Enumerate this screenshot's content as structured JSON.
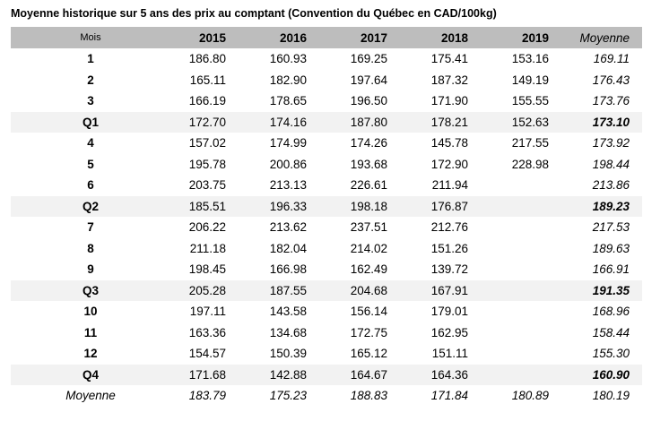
{
  "title": "Moyenne historique sur 5 ans des prix au comptant (Convention du Québec en CAD/100kg)",
  "table": {
    "columns": [
      "Mois",
      "2015",
      "2016",
      "2017",
      "2018",
      "2019",
      "Moyenne"
    ],
    "rows": [
      {
        "label": "1",
        "type": "month",
        "values": [
          "186.80",
          "160.93",
          "169.25",
          "175.41",
          "153.16",
          "169.11"
        ]
      },
      {
        "label": "2",
        "type": "month",
        "values": [
          "165.11",
          "182.90",
          "197.64",
          "187.32",
          "149.19",
          "176.43"
        ]
      },
      {
        "label": "3",
        "type": "month",
        "values": [
          "166.19",
          "178.65",
          "196.50",
          "171.90",
          "155.55",
          "173.76"
        ]
      },
      {
        "label": "Q1",
        "type": "quarter",
        "values": [
          "172.70",
          "174.16",
          "187.80",
          "178.21",
          "152.63",
          "173.10"
        ]
      },
      {
        "label": "4",
        "type": "month",
        "values": [
          "157.02",
          "174.99",
          "174.26",
          "145.78",
          "217.55",
          "173.92"
        ]
      },
      {
        "label": "5",
        "type": "month",
        "values": [
          "195.78",
          "200.86",
          "193.68",
          "172.90",
          "228.98",
          "198.44"
        ]
      },
      {
        "label": "6",
        "type": "month",
        "values": [
          "203.75",
          "213.13",
          "226.61",
          "211.94",
          "",
          "213.86"
        ]
      },
      {
        "label": "Q2",
        "type": "quarter",
        "values": [
          "185.51",
          "196.33",
          "198.18",
          "176.87",
          "",
          "189.23"
        ]
      },
      {
        "label": "7",
        "type": "month",
        "values": [
          "206.22",
          "213.62",
          "237.51",
          "212.76",
          "",
          "217.53"
        ]
      },
      {
        "label": "8",
        "type": "month",
        "values": [
          "211.18",
          "182.04",
          "214.02",
          "151.26",
          "",
          "189.63"
        ]
      },
      {
        "label": "9",
        "type": "month",
        "values": [
          "198.45",
          "166.98",
          "162.49",
          "139.72",
          "",
          "166.91"
        ]
      },
      {
        "label": "Q3",
        "type": "quarter",
        "values": [
          "205.28",
          "187.55",
          "204.68",
          "167.91",
          "",
          "191.35"
        ]
      },
      {
        "label": "10",
        "type": "month",
        "values": [
          "197.11",
          "143.58",
          "156.14",
          "179.01",
          "",
          "168.96"
        ]
      },
      {
        "label": "11",
        "type": "month",
        "values": [
          "163.36",
          "134.68",
          "172.75",
          "162.95",
          "",
          "158.44"
        ]
      },
      {
        "label": "12",
        "type": "month",
        "values": [
          "154.57",
          "150.39",
          "165.12",
          "151.11",
          "",
          "155.30"
        ]
      },
      {
        "label": "Q4",
        "type": "quarter",
        "values": [
          "171.68",
          "142.88",
          "164.67",
          "164.36",
          "",
          "160.90"
        ]
      },
      {
        "label": "Moyenne",
        "type": "average",
        "values": [
          "183.79",
          "175.23",
          "188.83",
          "171.84",
          "180.89",
          "180.19"
        ]
      }
    ]
  },
  "colors": {
    "header_bg": "#bdbdbd",
    "quarter_row_bg": "#f2f2f2",
    "text": "#000000"
  },
  "chart_data": {
    "type": "table",
    "title": "Moyenne historique sur 5 ans des prix au comptant (Convention du Québec en CAD/100kg)",
    "columns": [
      "Mois",
      "2015",
      "2016",
      "2017",
      "2018",
      "2019",
      "Moyenne"
    ],
    "rows": [
      [
        "1",
        186.8,
        160.93,
        169.25,
        175.41,
        153.16,
        169.11
      ],
      [
        "2",
        165.11,
        182.9,
        197.64,
        187.32,
        149.19,
        176.43
      ],
      [
        "3",
        166.19,
        178.65,
        196.5,
        171.9,
        155.55,
        173.76
      ],
      [
        "Q1",
        172.7,
        174.16,
        187.8,
        178.21,
        152.63,
        173.1
      ],
      [
        "4",
        157.02,
        174.99,
        174.26,
        145.78,
        217.55,
        173.92
      ],
      [
        "5",
        195.78,
        200.86,
        193.68,
        172.9,
        228.98,
        198.44
      ],
      [
        "6",
        203.75,
        213.13,
        226.61,
        211.94,
        null,
        213.86
      ],
      [
        "Q2",
        185.51,
        196.33,
        198.18,
        176.87,
        null,
        189.23
      ],
      [
        "7",
        206.22,
        213.62,
        237.51,
        212.76,
        null,
        217.53
      ],
      [
        "8",
        211.18,
        182.04,
        214.02,
        151.26,
        null,
        189.63
      ],
      [
        "9",
        198.45,
        166.98,
        162.49,
        139.72,
        null,
        166.91
      ],
      [
        "Q3",
        205.28,
        187.55,
        204.68,
        167.91,
        null,
        191.35
      ],
      [
        "10",
        197.11,
        143.58,
        156.14,
        179.01,
        null,
        168.96
      ],
      [
        "11",
        163.36,
        134.68,
        172.75,
        162.95,
        null,
        158.44
      ],
      [
        "12",
        154.57,
        150.39,
        165.12,
        151.11,
        null,
        155.3
      ],
      [
        "Q4",
        171.68,
        142.88,
        164.67,
        164.36,
        null,
        160.9
      ],
      [
        "Moyenne",
        183.79,
        175.23,
        188.83,
        171.84,
        180.89,
        180.19
      ]
    ]
  }
}
